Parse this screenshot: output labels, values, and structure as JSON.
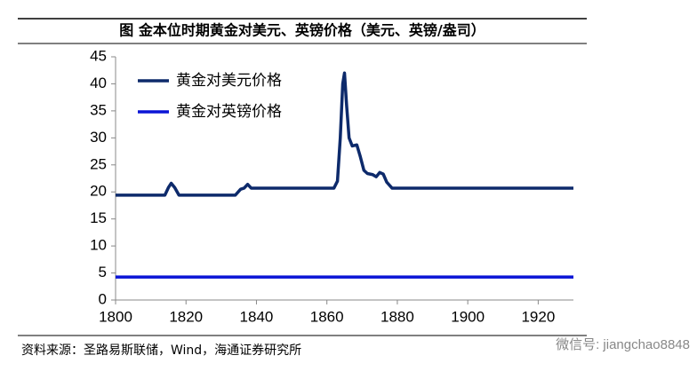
{
  "chart_data": {
    "type": "line",
    "title": "图  金本位时期黄金对美元、英镑价格（美元、英镑/盎司）",
    "source": "资料来源：圣路易斯联储，Wind，海通证券研究所",
    "watermark": "微信号: jiangchao8848",
    "xlim": [
      1800,
      1930
    ],
    "xticks": [
      1800,
      1820,
      1840,
      1860,
      1880,
      1900,
      1920
    ],
    "ylim": [
      0,
      45
    ],
    "yticks": [
      0,
      5,
      10,
      15,
      20,
      25,
      30,
      35,
      40,
      45
    ],
    "legend": "top-left",
    "series": [
      {
        "name": "黄金对美元价格",
        "color": "#0d2a6b",
        "x": [
          1800,
          1814,
          1815,
          1815.8,
          1816.8,
          1818,
          1834,
          1835.5,
          1836.5,
          1837.5,
          1838.5,
          1840,
          1862,
          1863,
          1863.8,
          1864.5,
          1865,
          1865.6,
          1866.3,
          1867.2,
          1868.5,
          1869.5,
          1870.5,
          1871.5,
          1873,
          1874,
          1875,
          1876,
          1877,
          1878.5,
          1930
        ],
        "values": [
          19.4,
          19.4,
          20.8,
          21.6,
          20.8,
          19.4,
          19.4,
          20.5,
          20.7,
          21.4,
          20.7,
          20.7,
          20.7,
          22,
          30,
          40,
          42,
          36,
          30,
          28.5,
          28.7,
          26.5,
          24,
          23.4,
          23.2,
          22.8,
          23.6,
          23.3,
          21.8,
          20.7,
          20.7
        ]
      },
      {
        "name": "黄金对英镑价格",
        "color": "#0a14d6",
        "x": [
          1800,
          1930
        ],
        "values": [
          4.25,
          4.25
        ]
      }
    ]
  }
}
